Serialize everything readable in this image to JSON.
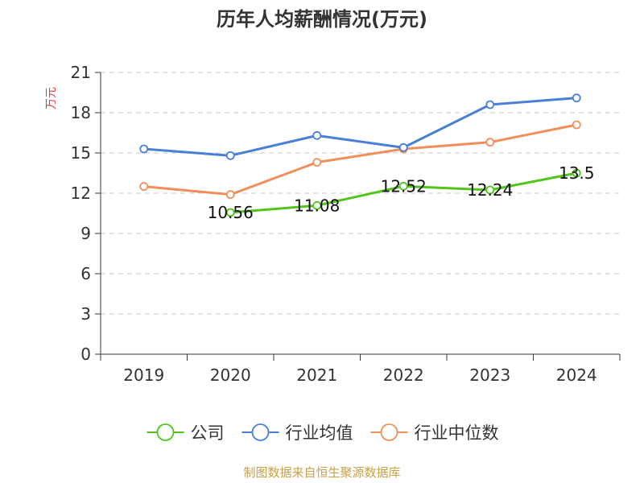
{
  "chart_data": {
    "type": "line",
    "title": "历年人均薪酬情况(万元)",
    "ylabel": "万元",
    "xlabel": "",
    "categories": [
      "2019",
      "2020",
      "2021",
      "2022",
      "2023",
      "2024"
    ],
    "ylim": [
      0,
      21
    ],
    "yticks": [
      0,
      3,
      6,
      9,
      12,
      15,
      18,
      21
    ],
    "grid": true,
    "legend_position": "bottom",
    "series": [
      {
        "name": "公司",
        "color": "#52c41a",
        "values": [
          null,
          10.56,
          11.08,
          12.52,
          12.24,
          13.5
        ],
        "data_labels": [
          "",
          "10.56",
          "11.08",
          "12.52",
          "12.24",
          "13.5"
        ]
      },
      {
        "name": "行业均值",
        "color": "#4a7fd9",
        "values": [
          15.3,
          14.8,
          16.3,
          15.4,
          18.6,
          19.1
        ]
      },
      {
        "name": "行业中位数",
        "color": "#f28e5a",
        "values": [
          12.5,
          11.9,
          14.3,
          15.3,
          15.8,
          17.1
        ]
      }
    ]
  },
  "footer": {
    "source": "制图数据来自恒生聚源数据库"
  }
}
